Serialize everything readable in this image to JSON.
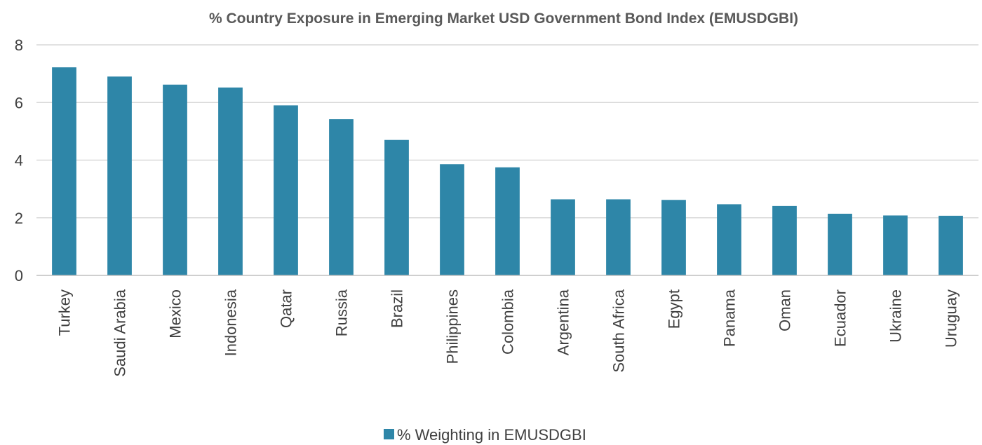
{
  "chart_data": {
    "type": "bar",
    "title": "% Country Exposure in Emerging Market USD Government Bond Index (EMUSDGBI)",
    "xlabel": "",
    "ylabel": "",
    "ylim": [
      0,
      8
    ],
    "yticks": [
      0,
      2,
      4,
      6,
      8
    ],
    "grid": true,
    "legend_position": "bottom",
    "categories": [
      "Turkey",
      "Saudi Arabia",
      "Mexico",
      "Indonesia",
      "Qatar",
      "Russia",
      "Brazil",
      "Philippines",
      "Colombia",
      "Argentina",
      "South Africa",
      "Egypt",
      "Panama",
      "Oman",
      "Ecuador",
      "Ukraine",
      "Uruguay"
    ],
    "series": [
      {
        "name": "% Weighting in EMUSDGBI",
        "color": "#2e86a8",
        "values": [
          7.22,
          6.9,
          6.62,
          6.52,
          5.9,
          5.42,
          4.7,
          3.86,
          3.75,
          2.64,
          2.64,
          2.62,
          2.47,
          2.41,
          2.14,
          2.08,
          2.07
        ]
      }
    ]
  }
}
